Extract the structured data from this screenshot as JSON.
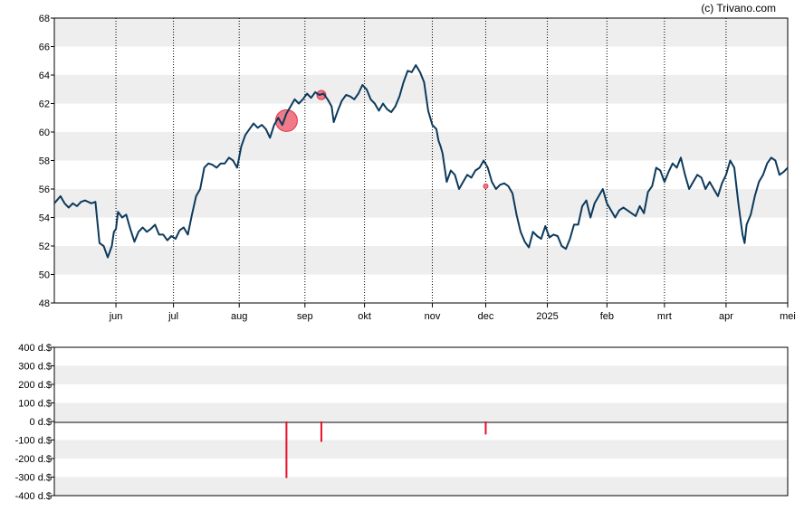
{
  "credit": "(c) Trivano.com",
  "chart_data": [
    {
      "type": "line",
      "ylim": [
        48,
        68
      ],
      "y_ticks": [
        48,
        50,
        52,
        54,
        56,
        58,
        60,
        62,
        64,
        66,
        68
      ],
      "x_range_days": [
        0,
        357
      ],
      "x_ticks": [
        {
          "label": "jun",
          "day": 30
        },
        {
          "label": "jul",
          "day": 58
        },
        {
          "label": "aug",
          "day": 90
        },
        {
          "label": "sep",
          "day": 122
        },
        {
          "label": "okt",
          "day": 151
        },
        {
          "label": "nov",
          "day": 184
        },
        {
          "label": "dec",
          "day": 210
        },
        {
          "label": "2025",
          "day": 240
        },
        {
          "label": "feb",
          "day": 269
        },
        {
          "label": "mrt",
          "day": 297
        },
        {
          "label": "apr",
          "day": 327
        },
        {
          "label": "mei",
          "day": 357
        }
      ],
      "grid": "alternating horizontal bands, dotted vertical lines at month ticks",
      "series": [
        {
          "color": "#0d3a5c",
          "points": [
            [
              0,
              55.0
            ],
            [
              3,
              55.5
            ],
            [
              5,
              55.0
            ],
            [
              7,
              54.7
            ],
            [
              9,
              55.0
            ],
            [
              11,
              54.8
            ],
            [
              13,
              55.1
            ],
            [
              15,
              55.2
            ],
            [
              18,
              55.0
            ],
            [
              20,
              55.1
            ],
            [
              22,
              52.2
            ],
            [
              24,
              52.0
            ],
            [
              26,
              51.2
            ],
            [
              28,
              52.0
            ],
            [
              29,
              53.0
            ],
            [
              30,
              53.2
            ],
            [
              31,
              54.4
            ],
            [
              33,
              54.0
            ],
            [
              35,
              54.2
            ],
            [
              37,
              53.2
            ],
            [
              39,
              52.3
            ],
            [
              41,
              53.0
            ],
            [
              43,
              53.3
            ],
            [
              45,
              53.0
            ],
            [
              47,
              53.2
            ],
            [
              49,
              53.5
            ],
            [
              51,
              52.8
            ],
            [
              53,
              52.8
            ],
            [
              55,
              52.4
            ],
            [
              57,
              52.7
            ],
            [
              59,
              52.5
            ],
            [
              61,
              53.1
            ],
            [
              63,
              53.3
            ],
            [
              65,
              52.8
            ],
            [
              67,
              54.2
            ],
            [
              69,
              55.5
            ],
            [
              71,
              56.0
            ],
            [
              73,
              57.5
            ],
            [
              75,
              57.8
            ],
            [
              77,
              57.7
            ],
            [
              79,
              57.5
            ],
            [
              81,
              57.8
            ],
            [
              83,
              57.8
            ],
            [
              85,
              58.2
            ],
            [
              87,
              58.0
            ],
            [
              89,
              57.5
            ],
            [
              91,
              59.0
            ],
            [
              93,
              59.8
            ],
            [
              95,
              60.2
            ],
            [
              97,
              60.6
            ],
            [
              99,
              60.3
            ],
            [
              101,
              60.5
            ],
            [
              103,
              60.2
            ],
            [
              105,
              59.6
            ],
            [
              107,
              60.5
            ],
            [
              109,
              61.0
            ],
            [
              111,
              60.5
            ],
            [
              113,
              61.3
            ],
            [
              115,
              61.8
            ],
            [
              117,
              62.3
            ],
            [
              119,
              62.0
            ],
            [
              121,
              62.3
            ],
            [
              123,
              62.7
            ],
            [
              125,
              62.4
            ],
            [
              127,
              62.8
            ],
            [
              129,
              62.6
            ],
            [
              131,
              62.7
            ],
            [
              133,
              62.3
            ],
            [
              135,
              61.8
            ],
            [
              136,
              60.7
            ],
            [
              138,
              61.5
            ],
            [
              140,
              62.2
            ],
            [
              142,
              62.6
            ],
            [
              144,
              62.5
            ],
            [
              146,
              62.3
            ],
            [
              148,
              62.7
            ],
            [
              150,
              63.3
            ],
            [
              152,
              63.0
            ],
            [
              154,
              62.3
            ],
            [
              156,
              62.0
            ],
            [
              158,
              61.5
            ],
            [
              160,
              62.0
            ],
            [
              162,
              61.6
            ],
            [
              164,
              61.4
            ],
            [
              166,
              61.8
            ],
            [
              168,
              62.5
            ],
            [
              170,
              63.5
            ],
            [
              172,
              64.3
            ],
            [
              174,
              64.2
            ],
            [
              176,
              64.7
            ],
            [
              178,
              64.2
            ],
            [
              180,
              63.5
            ],
            [
              182,
              61.5
            ],
            [
              184,
              60.5
            ],
            [
              186,
              60.2
            ],
            [
              187,
              59.4
            ],
            [
              188,
              59.0
            ],
            [
              189,
              58.5
            ],
            [
              190,
              57.5
            ],
            [
              191,
              56.5
            ],
            [
              193,
              57.3
            ],
            [
              195,
              57.0
            ],
            [
              197,
              56.0
            ],
            [
              199,
              56.5
            ],
            [
              201,
              57.0
            ],
            [
              203,
              56.8
            ],
            [
              205,
              57.3
            ],
            [
              207,
              57.5
            ],
            [
              209,
              58.0
            ],
            [
              211,
              57.5
            ],
            [
              213,
              56.5
            ],
            [
              215,
              56.0
            ],
            [
              217,
              56.3
            ],
            [
              219,
              56.4
            ],
            [
              221,
              56.2
            ],
            [
              223,
              55.7
            ],
            [
              225,
              54.2
            ],
            [
              227,
              53.0
            ],
            [
              229,
              52.3
            ],
            [
              231,
              51.9
            ],
            [
              233,
              53.0
            ],
            [
              235,
              52.7
            ],
            [
              237,
              52.5
            ],
            [
              239,
              53.4
            ],
            [
              241,
              52.6
            ],
            [
              243,
              52.8
            ],
            [
              245,
              52.7
            ],
            [
              247,
              52.0
            ],
            [
              249,
              51.8
            ],
            [
              251,
              52.5
            ],
            [
              253,
              53.5
            ],
            [
              255,
              53.5
            ],
            [
              257,
              54.8
            ],
            [
              259,
              55.2
            ],
            [
              261,
              54.0
            ],
            [
              263,
              55.0
            ],
            [
              265,
              55.5
            ],
            [
              267,
              56.0
            ],
            [
              269,
              55.0
            ],
            [
              271,
              54.5
            ],
            [
              273,
              54.0
            ],
            [
              275,
              54.5
            ],
            [
              277,
              54.7
            ],
            [
              279,
              54.5
            ],
            [
              281,
              54.3
            ],
            [
              283,
              54.1
            ],
            [
              285,
              54.8
            ],
            [
              287,
              54.3
            ],
            [
              289,
              55.8
            ],
            [
              291,
              56.2
            ],
            [
              293,
              57.5
            ],
            [
              295,
              57.3
            ],
            [
              297,
              56.5
            ],
            [
              299,
              57.2
            ],
            [
              301,
              57.8
            ],
            [
              303,
              57.5
            ],
            [
              305,
              58.2
            ],
            [
              307,
              57.0
            ],
            [
              309,
              56.0
            ],
            [
              311,
              56.5
            ],
            [
              313,
              57.0
            ],
            [
              315,
              56.8
            ],
            [
              317,
              56.0
            ],
            [
              319,
              56.5
            ],
            [
              321,
              56.0
            ],
            [
              323,
              55.5
            ],
            [
              325,
              56.4
            ],
            [
              327,
              57.0
            ],
            [
              329,
              58.0
            ],
            [
              331,
              57.5
            ],
            [
              333,
              55.0
            ],
            [
              335,
              52.8
            ],
            [
              336,
              52.2
            ],
            [
              337,
              53.5
            ],
            [
              339,
              54.2
            ],
            [
              341,
              55.5
            ],
            [
              343,
              56.5
            ],
            [
              345,
              57.0
            ],
            [
              347,
              57.8
            ],
            [
              349,
              58.2
            ],
            [
              351,
              58.0
            ],
            [
              353,
              57.0
            ],
            [
              355,
              57.2
            ],
            [
              357,
              57.5
            ]
          ]
        }
      ],
      "markers": [
        {
          "day": 113,
          "value": 60.8,
          "size": "large"
        },
        {
          "day": 130,
          "value": 62.6,
          "size": "small"
        },
        {
          "day": 210,
          "value": 56.2,
          "size": "tiny"
        }
      ]
    },
    {
      "type": "bar",
      "ylim": [
        -400,
        400
      ],
      "y_ticks": [
        {
          "value": 400,
          "label": "400 d.$"
        },
        {
          "value": 300,
          "label": "300 d.$"
        },
        {
          "value": 200,
          "label": "200 d.$"
        },
        {
          "value": 100,
          "label": "100 d.$"
        },
        {
          "value": 0,
          "label": "0 d.$"
        },
        {
          "value": -100,
          "label": "-100 d.$"
        },
        {
          "value": -200,
          "label": "-200 d.$"
        },
        {
          "value": -300,
          "label": "-300 d.$"
        },
        {
          "value": -400,
          "label": "-400 d.$"
        }
      ],
      "bars": [
        {
          "day": 113,
          "value": -305
        },
        {
          "day": 130,
          "value": -110
        },
        {
          "day": 210,
          "value": -70
        }
      ],
      "bar_color": "#e8102a",
      "grid": "alternating horizontal bands"
    }
  ],
  "colors": {
    "line": "#0d3a5c",
    "band": "#eeeeee",
    "marker_fill": "#f07a88",
    "marker_stroke": "#e0334a",
    "bar": "#e8102a"
  }
}
